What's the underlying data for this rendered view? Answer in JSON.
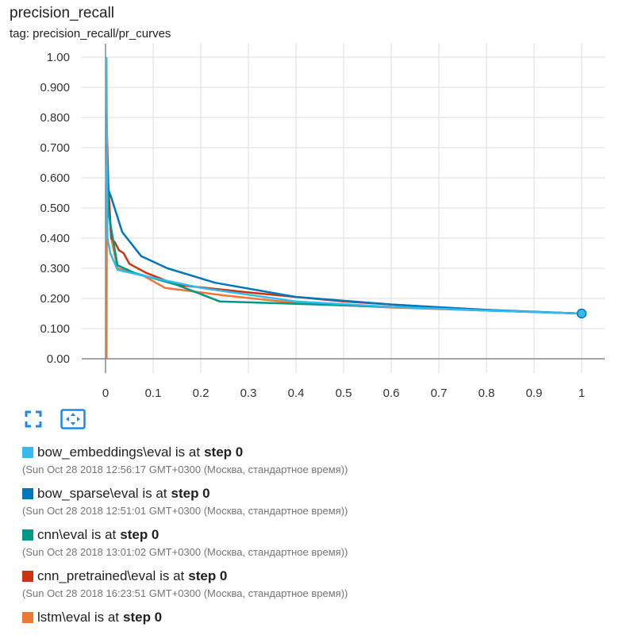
{
  "header": {
    "title": "precision_recall",
    "tag": "tag: precision_recall/pr_curves"
  },
  "legend": {
    "items": [
      {
        "run": "bow_embeddings\\eval",
        "mid": "is at",
        "step": "step 0",
        "time": "(Sun Oct 28 2018 12:56:17 GMT+0300 (Москва, стандартное время))",
        "color": "#33bbee"
      },
      {
        "run": "bow_sparse\\eval",
        "mid": "is at",
        "step": "step 0",
        "time": "(Sun Oct 28 2018 12:51:01 GMT+0300 (Москва, стандартное время))",
        "color": "#0077bb"
      },
      {
        "run": "cnn\\eval",
        "mid": "is at",
        "step": "step 0",
        "time": "(Sun Oct 28 2018 13:01:02 GMT+0300 (Москва, стандартное время))",
        "color": "#009988"
      },
      {
        "run": "cnn_pretrained\\eval",
        "mid": "is at",
        "step": "step 0",
        "time": "(Sun Oct 28 2018 16:23:51 GMT+0300 (Москва, стандартное время))",
        "color": "#cc3311"
      },
      {
        "run": "lstm\\eval",
        "mid": "is at",
        "step": "step 0",
        "time": "",
        "color": "#ee7733"
      }
    ]
  },
  "toolbar": {
    "fit_icon": "fit-domain-icon",
    "zoom_icon": "toggle-y-scale-icon"
  },
  "chart_data": {
    "type": "line",
    "title": "precision_recall",
    "xlabel": "",
    "ylabel": "",
    "xlim": [
      0,
      1
    ],
    "ylim": [
      0,
      1
    ],
    "x_ticks": [
      "0",
      "0.1",
      "0.2",
      "0.3",
      "0.4",
      "0.5",
      "0.6",
      "0.7",
      "0.8",
      "0.9",
      "1"
    ],
    "y_ticks": [
      "0.00",
      "0.100",
      "0.200",
      "0.300",
      "0.400",
      "0.500",
      "0.600",
      "0.700",
      "0.800",
      "0.900",
      "1.00"
    ],
    "grid": true,
    "series": [
      {
        "name": "bow_embeddings\\eval",
        "color": "#33bbee",
        "points": [
          [
            0.002,
            1.0
          ],
          [
            0.004,
            0.4
          ],
          [
            0.01,
            0.35
          ],
          [
            0.025,
            0.295
          ],
          [
            0.08,
            0.275
          ],
          [
            0.2,
            0.235
          ],
          [
            0.4,
            0.19
          ],
          [
            0.6,
            0.172
          ],
          [
            0.8,
            0.16
          ],
          [
            1.0,
            0.15
          ]
        ]
      },
      {
        "name": "bow_sparse\\eval",
        "color": "#0077bb",
        "points": [
          [
            0.002,
            0.71
          ],
          [
            0.006,
            0.56
          ],
          [
            0.012,
            0.535
          ],
          [
            0.02,
            0.495
          ],
          [
            0.035,
            0.42
          ],
          [
            0.075,
            0.34
          ],
          [
            0.13,
            0.3
          ],
          [
            0.23,
            0.252
          ],
          [
            0.4,
            0.205
          ],
          [
            0.6,
            0.18
          ],
          [
            0.8,
            0.162
          ],
          [
            1.0,
            0.15
          ]
        ]
      },
      {
        "name": "cnn\\eval",
        "color": "#009988",
        "points": [
          [
            0.002,
            0.78
          ],
          [
            0.005,
            0.5
          ],
          [
            0.012,
            0.43
          ],
          [
            0.025,
            0.31
          ],
          [
            0.06,
            0.285
          ],
          [
            0.15,
            0.245
          ],
          [
            0.24,
            0.19
          ],
          [
            0.4,
            0.182
          ],
          [
            0.6,
            0.172
          ],
          [
            0.8,
            0.16
          ],
          [
            1.0,
            0.15
          ]
        ]
      },
      {
        "name": "cnn_pretrained\\eval",
        "color": "#cc3311",
        "points": [
          [
            0.002,
            0.81
          ],
          [
            0.006,
            0.57
          ],
          [
            0.012,
            0.4
          ],
          [
            0.02,
            0.385
          ],
          [
            0.028,
            0.36
          ],
          [
            0.038,
            0.35
          ],
          [
            0.05,
            0.315
          ],
          [
            0.085,
            0.285
          ],
          [
            0.15,
            0.245
          ],
          [
            0.3,
            0.22
          ],
          [
            0.5,
            0.19
          ],
          [
            0.7,
            0.17
          ],
          [
            0.85,
            0.158
          ],
          [
            1.0,
            0.15
          ]
        ]
      },
      {
        "name": "lstm\\eval",
        "color": "#ee7733",
        "points": [
          [
            0.002,
            0.0
          ],
          [
            0.003,
            0.58
          ],
          [
            0.012,
            0.4
          ],
          [
            0.025,
            0.3
          ],
          [
            0.08,
            0.275
          ],
          [
            0.125,
            0.235
          ],
          [
            0.25,
            0.21
          ],
          [
            0.4,
            0.185
          ],
          [
            0.6,
            0.17
          ],
          [
            0.8,
            0.16
          ],
          [
            1.0,
            0.15
          ]
        ]
      }
    ],
    "marker": {
      "series": "bow_embeddings\\eval",
      "x": 1.0,
      "y": 0.15
    }
  }
}
